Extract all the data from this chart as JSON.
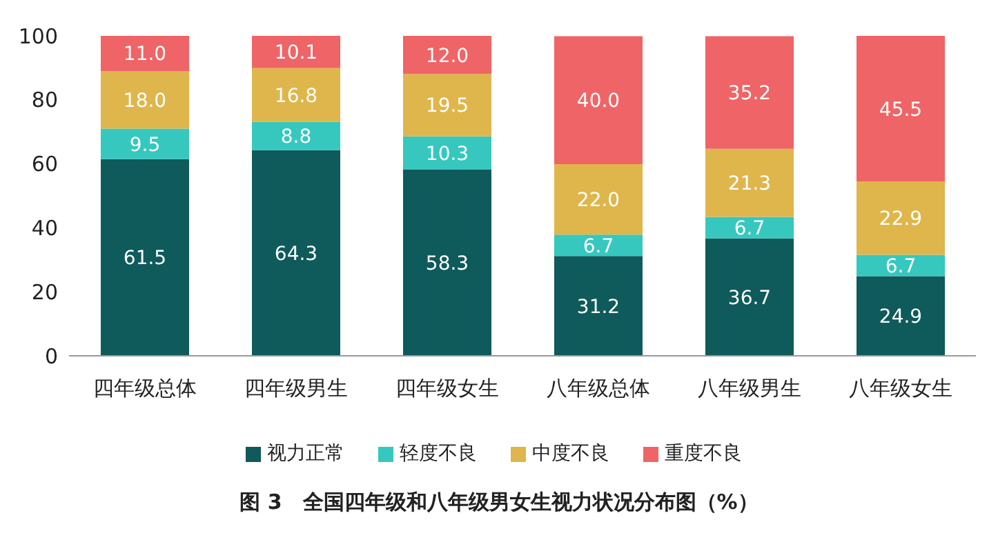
{
  "chart_data": {
    "type": "bar",
    "stacked": true,
    "title": "图 3　全国四年级和八年级男女生视力状况分布图（%）",
    "categories": [
      "四年级总体",
      "四年级男生",
      "四年级女生",
      "八年级总体",
      "八年级男生",
      "八年级女生"
    ],
    "series": [
      {
        "name": "视力正常",
        "color": "#0f5a5a",
        "values": [
          61.5,
          64.3,
          58.3,
          31.2,
          36.7,
          24.9
        ],
        "value_labels": [
          "61.5",
          "64.3",
          "58.3",
          "31.2",
          "36.7",
          "24.9"
        ]
      },
      {
        "name": "轻度不良",
        "color": "#36c8be",
        "values": [
          9.5,
          8.8,
          10.3,
          6.7,
          6.7,
          6.7
        ],
        "value_labels": [
          "9.5",
          "8.8",
          "10.3",
          "6.7",
          "6.7",
          "6.7"
        ]
      },
      {
        "name": "中度不良",
        "color": "#dfb64c",
        "values": [
          18,
          16.8,
          19.5,
          22,
          21.3,
          22.9
        ],
        "value_labels": [
          "18.0",
          "16.8",
          "19.5",
          "22.0",
          "21.3",
          "22.9"
        ]
      },
      {
        "name": "重度不良",
        "color": "#ef6466",
        "values": [
          11,
          10.1,
          12,
          40,
          35.2,
          45.5
        ],
        "value_labels": [
          "11.0",
          "10.1",
          "12.0",
          "40.0",
          "35.2",
          "45.5"
        ]
      }
    ],
    "ylim": [
      0,
      100
    ],
    "yticks": [
      0,
      20,
      40,
      60,
      80,
      100
    ],
    "legend": "bottom"
  }
}
